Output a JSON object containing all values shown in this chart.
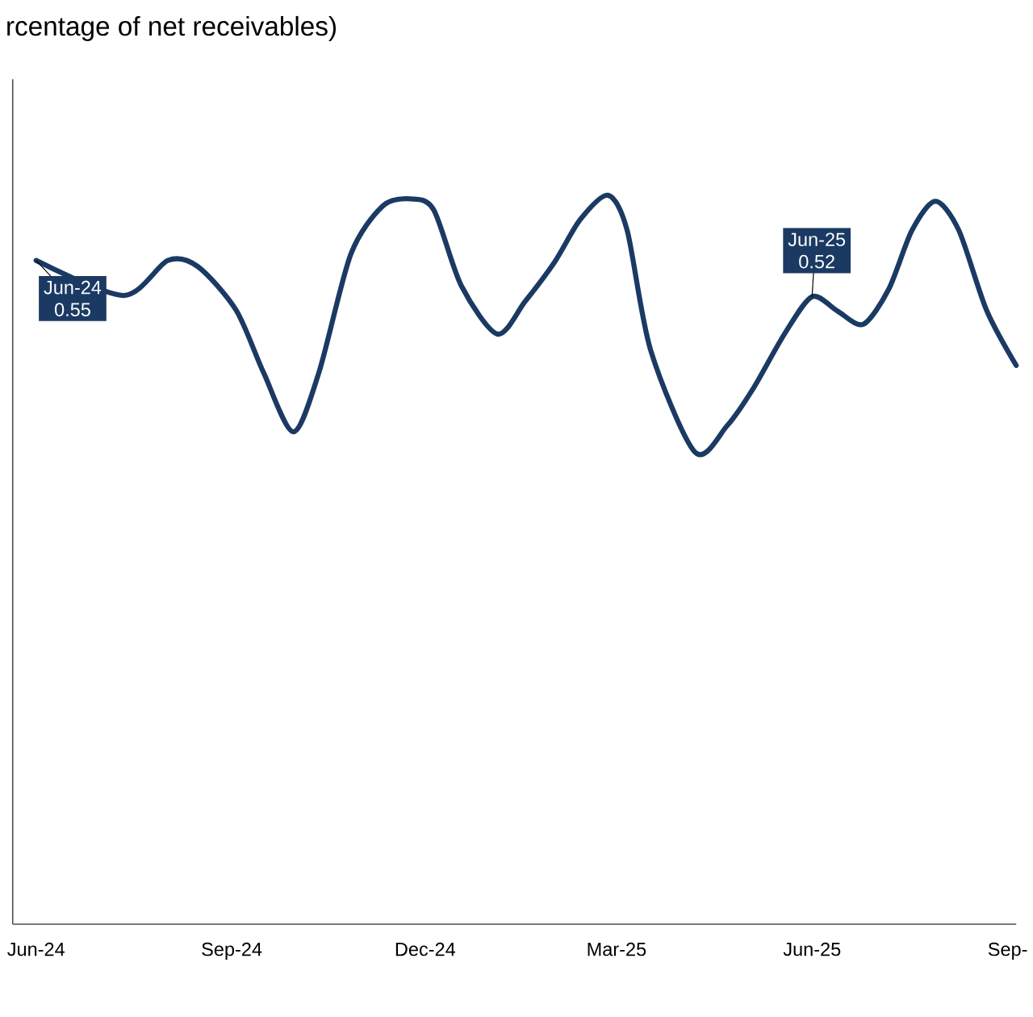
{
  "chart_data": {
    "type": "line",
    "title": "rcentage of net receivables)",
    "x": [
      "2024-06-01",
      "2024-07-12",
      "2024-08-02",
      "2024-08-16",
      "2024-09-03",
      "2024-09-16",
      "2024-09-30",
      "2024-10-12",
      "2024-10-27",
      "2024-11-11",
      "2024-11-24",
      "2024-12-05",
      "2024-12-18",
      "2025-01-04",
      "2025-01-17",
      "2025-01-31",
      "2025-02-12",
      "2025-02-25",
      "2025-03-06",
      "2025-03-17",
      "2025-04-07",
      "2025-04-22",
      "2025-05-04",
      "2025-05-19",
      "2025-06-01",
      "2025-06-13",
      "2025-06-25",
      "2025-07-07",
      "2025-07-18",
      "2025-07-29",
      "2025-08-09",
      "2025-08-22",
      "2025-09-05"
    ],
    "series": [
      {
        "color": "#1b3a63",
        "values": [
          0.55,
          0.521,
          0.55,
          0.545,
          0.509,
          0.457,
          0.408,
          0.457,
          0.555,
          0.595,
          0.601,
          0.592,
          0.529,
          0.489,
          0.516,
          0.549,
          0.584,
          0.604,
          0.575,
          0.476,
          0.391,
          0.413,
          0.443,
          0.489,
          0.52,
          0.508,
          0.497,
          0.526,
          0.575,
          0.599,
          0.575,
          0.509,
          0.463
        ],
        "value_labels": [
          "0.55",
          null,
          null,
          null,
          null,
          null,
          null,
          null,
          null,
          null,
          null,
          null,
          null,
          null,
          null,
          null,
          null,
          null,
          null,
          null,
          null,
          null,
          null,
          null,
          "0.52",
          null,
          null,
          null,
          null,
          null,
          null,
          null,
          null
        ]
      }
    ],
    "annotations": [
      {
        "text": "Jun-24",
        "x": "2024-06-01",
        "y": 0.55
      },
      {
        "text": "Jun-25",
        "x": "2025-06-01",
        "y": 0.52
      }
    ],
    "xlim": [
      "2024-05-21",
      "2025-09-05"
    ],
    "xticks": [
      {
        "value": "2024-06-01",
        "label": "Jun-24"
      },
      {
        "value": "2024-09-01",
        "label": "Sep-24"
      },
      {
        "value": "2024-12-01",
        "label": "Dec-24"
      },
      {
        "value": "2025-03-01",
        "label": "Mar-25"
      },
      {
        "value": "2025-06-01",
        "label": "Jun-25"
      },
      {
        "value": "2025-09-01",
        "label": "Sep-"
      }
    ],
    "ylim": [
      0,
      0.7
    ],
    "tick_labels": "x",
    "grid": false,
    "marker": "none",
    "line_style": "solid"
  }
}
